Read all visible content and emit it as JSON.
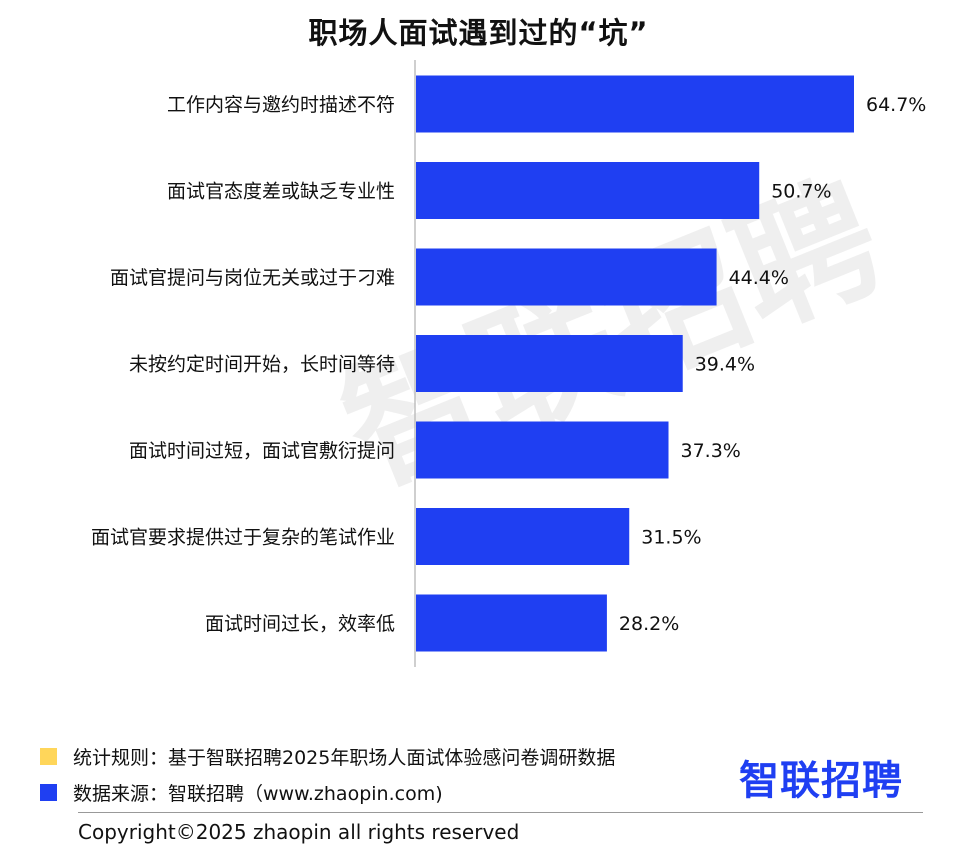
{
  "colors": {
    "bar": "#1f3ff2",
    "rule_swatch": "#ffd65a",
    "source_swatch": "#1f3ff2",
    "logo": "#1f3ff2",
    "axis": "#bfbfbf"
  },
  "chart_data": {
    "type": "bar",
    "orientation": "horizontal",
    "title": "职场人面试遇到过的“坑”",
    "categories": [
      "工作内容与邀约时描述不符",
      "面试官态度差或缺乏专业性",
      "面试官提问与岗位无关或过于刁难",
      "未按约定时间开始，长时间等待",
      "面试时间过短，面试官敷衍提问",
      "面试官要求提供过于复杂的笔试作业",
      "面试时间过长，效率低"
    ],
    "values": [
      64.7,
      50.7,
      44.4,
      39.4,
      37.3,
      31.5,
      28.2
    ],
    "value_labels": [
      "64.7%",
      "50.7%",
      "44.4%",
      "39.4%",
      "37.3%",
      "31.5%",
      "28.2%"
    ],
    "xlim": [
      0,
      64.7
    ],
    "grid": false
  },
  "watermark": "智联招聘",
  "notes": {
    "rule": "统计规则：基于智联招聘2025年职场人面试体验感问卷调研数据",
    "source": "数据来源：智联招聘（www.zhaopin.com)"
  },
  "logo": "智联招聘",
  "copyright": "Copyright©2025 zhaopin all rights reserved"
}
